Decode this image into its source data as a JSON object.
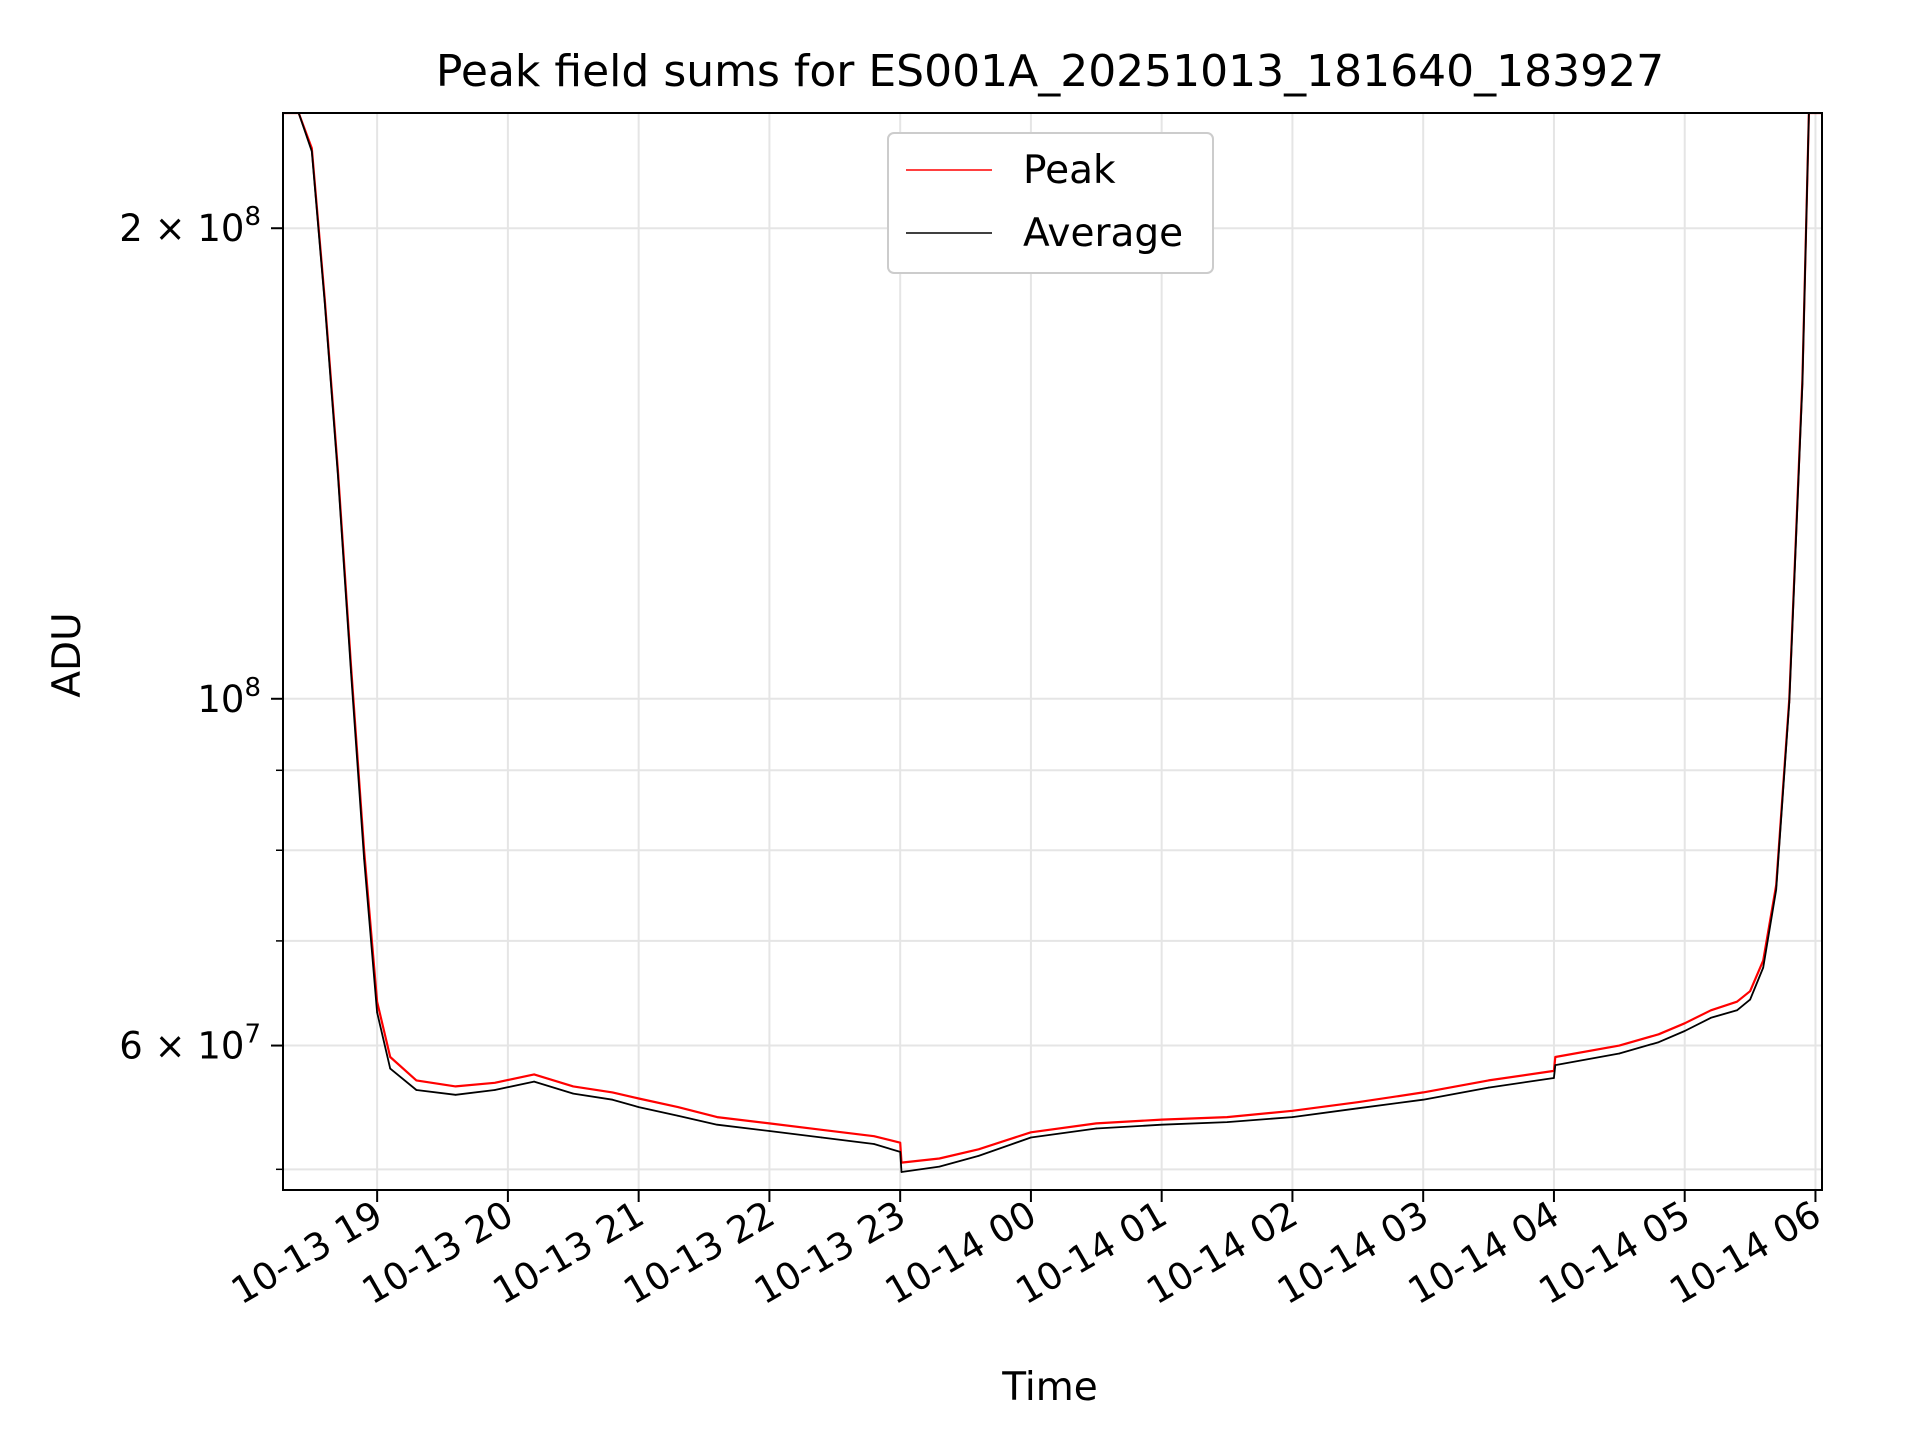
{
  "chart_data": {
    "type": "line",
    "title": "Peak field sums for ES001A_20251013_181640_183927",
    "xlabel": "Time",
    "ylabel": "ADU",
    "yscale": "log",
    "ylim": [
      48500000,
      237000000
    ],
    "xlim_hours": [
      18.28,
      30.05
    ],
    "grid": true,
    "legend": {
      "position": "upper-center",
      "entries": [
        {
          "label": "Peak",
          "color": "#ff0000"
        },
        {
          "label": "Average",
          "color": "#000000"
        }
      ]
    },
    "x_ticks": [
      {
        "hour": 19,
        "label": "10-13 19"
      },
      {
        "hour": 20,
        "label": "10-13 20"
      },
      {
        "hour": 21,
        "label": "10-13 21"
      },
      {
        "hour": 22,
        "label": "10-13 22"
      },
      {
        "hour": 23,
        "label": "10-13 23"
      },
      {
        "hour": 24,
        "label": "10-14 00"
      },
      {
        "hour": 25,
        "label": "10-14 01"
      },
      {
        "hour": 26,
        "label": "10-14 02"
      },
      {
        "hour": 27,
        "label": "10-14 03"
      },
      {
        "hour": 28,
        "label": "10-14 04"
      },
      {
        "hour": 29,
        "label": "10-14 05"
      },
      {
        "hour": 30,
        "label": "10-14 06"
      }
    ],
    "y_major_ticks": [
      {
        "value": 200000000,
        "mantissa": "2",
        "exp": "8"
      },
      {
        "value": 100000000,
        "mantissa": "",
        "exp": "8"
      },
      {
        "value": 60000000,
        "mantissa": "6",
        "exp": "7"
      }
    ],
    "y_minor_ticks": [
      50000000,
      70000000,
      80000000,
      90000000
    ],
    "series": [
      {
        "name": "Peak",
        "color": "#ff0000",
        "x": [
          18.28,
          18.4,
          18.5,
          18.6,
          18.7,
          18.8,
          18.9,
          19.0,
          19.1,
          19.3,
          19.6,
          19.9,
          20.2,
          20.5,
          20.8,
          21.0,
          21.3,
          21.6,
          22.0,
          22.4,
          22.8,
          23.0,
          23.01,
          23.3,
          23.6,
          24.0,
          24.5,
          25.0,
          25.5,
          26.0,
          26.5,
          27.0,
          27.5,
          28.0,
          28.01,
          28.5,
          28.8,
          29.0,
          29.2,
          29.4,
          29.5,
          29.6,
          29.7,
          29.8,
          29.9,
          29.95,
          30.05
        ],
        "values": [
          237000000,
          237000000,
          225000000,
          180000000,
          140000000,
          105000000,
          80000000,
          64000000,
          59000000,
          57000000,
          56500000,
          56800000,
          57500000,
          56500000,
          56000000,
          55500000,
          54800000,
          54000000,
          53500000,
          53000000,
          52500000,
          52000000,
          50500000,
          50800000,
          51500000,
          52800000,
          53500000,
          53800000,
          54000000,
          54500000,
          55200000,
          56000000,
          57000000,
          57800000,
          59000000,
          60000000,
          61000000,
          62000000,
          63200000,
          64000000,
          65000000,
          68000000,
          76000000,
          100000000,
          160000000,
          237000000,
          237000000
        ]
      },
      {
        "name": "Average",
        "color": "#000000",
        "x": [
          18.28,
          18.4,
          18.5,
          18.6,
          18.7,
          18.8,
          18.9,
          19.0,
          19.1,
          19.3,
          19.6,
          19.9,
          20.2,
          20.5,
          20.8,
          21.0,
          21.3,
          21.6,
          22.0,
          22.4,
          22.8,
          23.0,
          23.01,
          23.3,
          23.6,
          24.0,
          24.5,
          25.0,
          25.5,
          26.0,
          26.5,
          27.0,
          27.5,
          28.0,
          28.01,
          28.5,
          28.8,
          29.0,
          29.2,
          29.4,
          29.5,
          29.6,
          29.7,
          29.8,
          29.9,
          29.95,
          30.05
        ],
        "values": [
          237000000,
          237000000,
          224000000,
          179000000,
          139000000,
          104000000,
          79000000,
          63000000,
          58000000,
          56200000,
          55800000,
          56200000,
          56900000,
          55900000,
          55400000,
          54800000,
          54100000,
          53400000,
          52900000,
          52400000,
          51900000,
          51300000,
          49800000,
          50200000,
          51000000,
          52400000,
          53100000,
          53400000,
          53600000,
          54000000,
          54700000,
          55400000,
          56400000,
          57200000,
          58300000,
          59300000,
          60300000,
          61300000,
          62500000,
          63200000,
          64200000,
          67300000,
          75500000,
          99500000,
          159000000,
          237000000,
          237000000
        ]
      }
    ]
  }
}
